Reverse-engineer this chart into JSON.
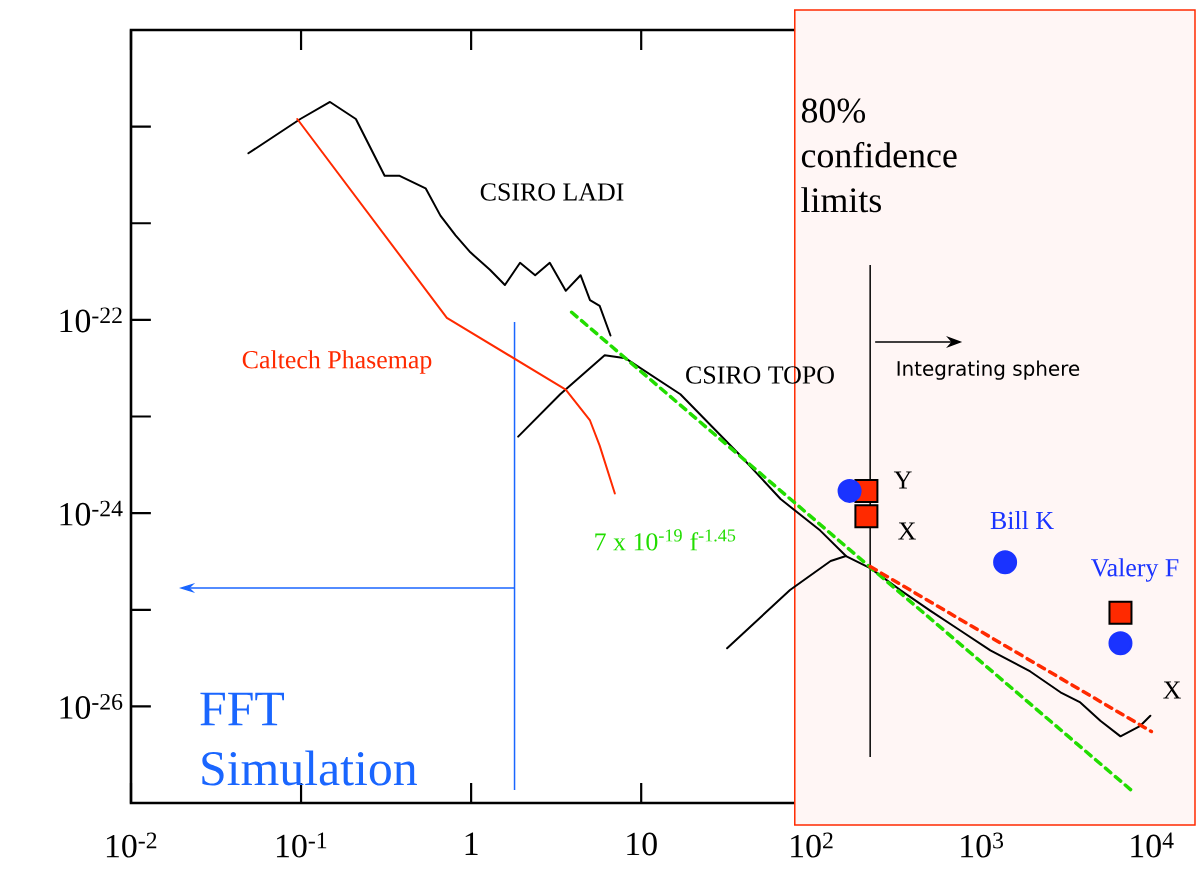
{
  "chart_data": {
    "type": "line",
    "log": "xy",
    "xlim": [
      0.01,
      10500
    ],
    "ylim": [
      1e-27,
      1e-19
    ],
    "marker": "none",
    "xticks": [
      {
        "value": 0.01,
        "label": "10$^{-2}$"
      },
      {
        "value": 0.1,
        "label": "10$^{-1}$"
      },
      1,
      10,
      {
        "value": 100,
        "label": "10$^{2}$"
      },
      {
        "value": 1000,
        "label": "10$^{3}$"
      },
      {
        "value": 10000,
        "label": "10$^{4}$"
      }
    ],
    "yticks": [
      {
        "value": 1e-26,
        "label": "10$^{-26}$"
      },
      {
        "value": 1e-24,
        "label": "10$^{-24}$"
      },
      {
        "value": 1e-22,
        "label": "10$^{-22}$"
      }
    ],
    "series": [
      {
        "name": "CSIRO LADI",
        "color": "#000000",
        "x": [
          0.049,
          0.099,
          0.148,
          0.21,
          0.31,
          0.38,
          0.54,
          0.66,
          0.81,
          0.99,
          1.29,
          1.58,
          1.94,
          2.38,
          2.9,
          3.6,
          4.4,
          5.0,
          5.7,
          6.6
        ],
        "values": [
          5.3e-21,
          1.2e-20,
          1.8e-20,
          1.2e-20,
          3.1e-21,
          3.1e-21,
          2.3e-21,
          1.2e-21,
          7.5e-22,
          5e-22,
          3.3e-22,
          2.3e-22,
          3.9e-22,
          2.9e-22,
          3.9e-22,
          2e-22,
          2.9e-22,
          1.6e-22,
          1.4e-22,
          6.9e-23
        ]
      },
      {
        "name": "CSIRO TOPO",
        "color": "#000000",
        "x": [
          1.89,
          3.34,
          6.1,
          8.1,
          17,
          38,
          66,
          113,
          160,
          222,
          334,
          500,
          752,
          1130,
          1940,
          2920,
          3820,
          5010,
          6580,
          8610,
          9860
        ],
        "values": [
          6.2e-24,
          1.7e-23,
          4.3e-23,
          4e-23,
          1.7e-23,
          4e-24,
          1.4e-24,
          6.6e-25,
          3.6e-25,
          2.7e-25,
          1.6e-25,
          9.8e-26,
          6.1e-26,
          3.8e-26,
          2.3e-26,
          1.4e-26,
          1.1e-26,
          7.1e-27,
          4.9e-27,
          6.3e-27,
          8e-27
        ]
      },
      {
        "color": "#000000",
        "x": [
          32,
          75,
          130,
          160
        ],
        "values": [
          4e-26,
          1.6e-25,
          3.2e-25,
          3.6e-25
        ]
      },
      {
        "name": "Caltech Phasemap",
        "color": "#ff2a00",
        "x": [
          0.095,
          0.72,
          3.6,
          5.0,
          5.7,
          7.0
        ],
        "values": [
          1.2e-20,
          1.05e-22,
          1.9e-23,
          9.1e-24,
          5e-24,
          1.6e-24
        ]
      },
      {
        "name": "7 x 10$^{-19}$ f$^{-1.45}$",
        "color": "#22dd00",
        "line_style": "dashed",
        "x": [
          3.9,
          7840
        ],
        "values": [
          1.2e-22,
          1.3e-27
        ]
      },
      {
        "color": "#ff2a00",
        "line_style": "dashed",
        "x": [
          222,
          10000
        ],
        "values": [
          2.8e-25,
          5.5e-27
        ]
      },
      {
        "type": "scatter",
        "marker": "square",
        "color": "#ff2a00",
        "x": [
          211,
          211,
          6580
        ],
        "values": [
          1.7e-24,
          9.3e-25,
          9.3e-26
        ]
      },
      {
        "type": "scatter",
        "marker": "circle",
        "color": "#1a33ff",
        "x": [
          168
        ],
        "values": [
          1.7e-24
        ]
      },
      {
        "name": "Bill K",
        "type": "scatter",
        "marker": "circle",
        "color": "#1a33ff",
        "x": [
          1380
        ],
        "values": [
          3.1e-25
        ]
      },
      {
        "name": "Valery F",
        "type": "scatter",
        "marker": "circle",
        "color": "#1a33ff",
        "x": [
          6580
        ],
        "values": [
          4.5e-26
        ]
      }
    ],
    "ref_lines": [
      {
        "axis": "x",
        "value": 1.8,
        "label": "FFT Simulation",
        "color": "#1a66ff"
      },
      {
        "axis": "x",
        "value": 222,
        "label": "Integrating sphere",
        "color": "#000000"
      }
    ],
    "bands": [
      {
        "axis": "x",
        "from": 80,
        "to": 10500,
        "color": "#ff2a00"
      }
    ],
    "annotations": [
      "80% confidence limits",
      "Y",
      "X",
      "X"
    ]
  }
}
